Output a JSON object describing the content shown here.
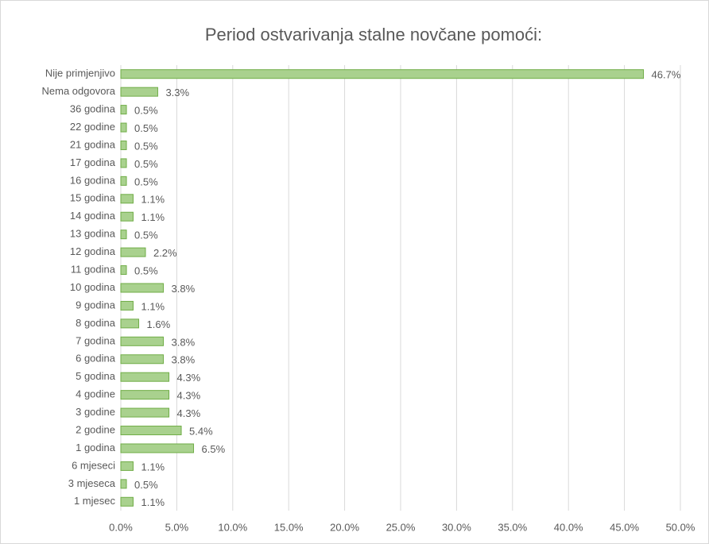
{
  "chart_data": {
    "type": "barh",
    "title": "Period ostvarivanja stalne novčane pomoći:",
    "categories": [
      "Nije primjenjivo",
      "Nema odgovora",
      "36 godina",
      "22 godine",
      "21 godina",
      "17 godina",
      "16 godina",
      "15 godina",
      "14 godina",
      "13 godina",
      "12 godina",
      "11 godina",
      "10 godina",
      "9 godina",
      "8 godina",
      "7 godina",
      "6 godina",
      "5 godina",
      "4 godine",
      "3 godine",
      "2 godine",
      "1 godina",
      "6 mjeseci",
      "3 mjeseca",
      "1 mjesec"
    ],
    "values": [
      46.7,
      3.3,
      0.5,
      0.5,
      0.5,
      0.5,
      0.5,
      1.1,
      1.1,
      0.5,
      2.2,
      0.5,
      3.8,
      1.1,
      1.6,
      3.8,
      3.8,
      4.3,
      4.3,
      4.3,
      5.4,
      6.5,
      1.1,
      0.5,
      1.1
    ],
    "value_labels": [
      "46.7%",
      "3.3%",
      "0.5%",
      "0.5%",
      "0.5%",
      "0.5%",
      "0.5%",
      "1.1%",
      "1.1%",
      "0.5%",
      "2.2%",
      "0.5%",
      "3.8%",
      "1.1%",
      "1.6%",
      "3.8%",
      "3.8%",
      "4.3%",
      "4.3%",
      "4.3%",
      "5.4%",
      "6.5%",
      "1.1%",
      "0.5%",
      "1.1%"
    ],
    "color": "#a9d18e",
    "edge_color": "#70ad47",
    "xlim": [
      0,
      50
    ],
    "xticks": [
      {
        "value": 0,
        "label": "0.0%"
      },
      {
        "value": 5,
        "label": "5.0%"
      },
      {
        "value": 10,
        "label": "10.0%"
      },
      {
        "value": 15,
        "label": "15.0%"
      },
      {
        "value": 20,
        "label": "20.0%"
      },
      {
        "value": 25,
        "label": "25.0%"
      },
      {
        "value": 30,
        "label": "30.0%"
      },
      {
        "value": 35,
        "label": "35.0%"
      },
      {
        "value": 40,
        "label": "40.0%"
      },
      {
        "value": 45,
        "label": "45.0%"
      },
      {
        "value": 50,
        "label": "50.0%"
      }
    ],
    "grid": true
  }
}
